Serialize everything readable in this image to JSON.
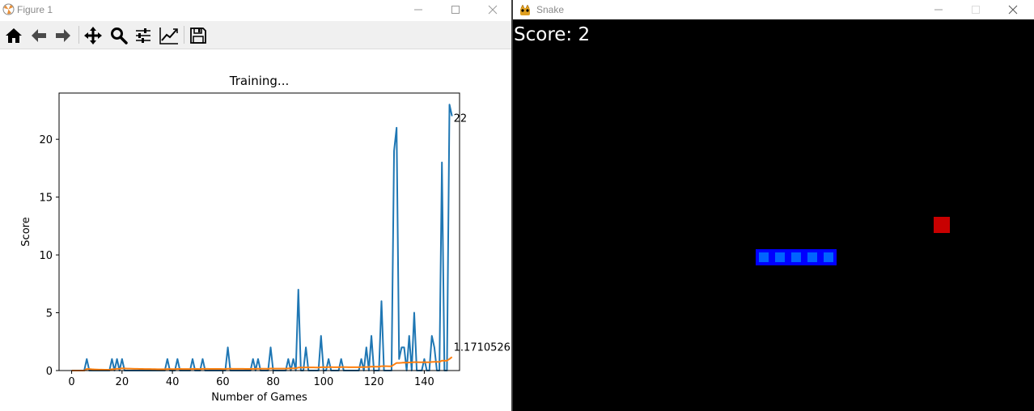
{
  "figure_window": {
    "title": "Figure 1",
    "toolbar": [
      {
        "icon": "home-icon"
      },
      {
        "icon": "back-arrow-icon"
      },
      {
        "icon": "forward-arrow-icon"
      },
      {
        "icon": "pan-icon"
      },
      {
        "icon": "zoom-icon"
      },
      {
        "icon": "subplots-config-icon"
      },
      {
        "icon": "edit-axes-icon"
      },
      {
        "icon": "save-icon"
      }
    ],
    "window_controls": [
      "minimize-icon",
      "maximize-icon",
      "close-icon"
    ]
  },
  "chart_data": {
    "type": "line",
    "title": "Training...",
    "xlabel": "Number of Games",
    "ylabel": "Score",
    "xlim": [
      -5,
      154
    ],
    "ylim": [
      0,
      24
    ],
    "xticks": [
      0,
      20,
      40,
      60,
      80,
      100,
      120,
      140
    ],
    "yticks": [
      0,
      5,
      10,
      15,
      20
    ],
    "grid": false,
    "series": [
      {
        "color": "#1f77b4",
        "values": [
          0,
          0,
          0,
          0,
          0,
          0,
          1,
          0,
          0,
          0,
          0,
          0,
          0,
          0,
          0,
          0,
          1,
          0,
          1,
          0,
          1,
          0,
          0,
          0,
          0,
          0,
          0,
          0,
          0,
          0,
          0,
          0,
          0,
          0,
          0,
          0,
          0,
          0,
          1,
          0,
          0,
          0,
          1,
          0,
          0,
          0,
          0,
          0,
          1,
          0,
          0,
          0,
          1,
          0,
          0,
          0,
          0,
          0,
          0,
          0,
          0,
          0,
          2,
          0,
          0,
          0,
          0,
          0,
          0,
          0,
          0,
          0,
          1,
          0,
          1,
          0,
          0,
          0,
          0,
          2,
          0,
          0,
          0,
          0,
          0,
          0,
          1,
          0,
          1,
          0,
          7,
          0,
          0,
          2,
          0,
          0,
          0,
          0,
          0,
          3,
          0,
          0,
          1,
          0,
          0,
          0,
          0,
          1,
          0,
          0,
          0,
          0,
          0,
          0,
          0,
          1,
          0,
          2,
          0,
          3,
          0,
          0,
          0,
          6,
          0,
          0,
          0,
          0,
          19,
          21,
          1,
          2,
          2,
          0,
          3,
          0,
          5,
          0,
          0,
          0,
          1,
          0,
          0,
          3,
          2,
          0,
          0,
          18,
          0,
          0,
          23,
          22
        ],
        "end_label": "22"
      },
      {
        "color": "#ff7f0e",
        "values": [
          0,
          0,
          0,
          0,
          0,
          0,
          0.14,
          0.13,
          0.11,
          0.1,
          0.09,
          0.08,
          0.08,
          0.07,
          0.07,
          0.06,
          0.12,
          0.11,
          0.16,
          0.15,
          0.19,
          0.18,
          0.17,
          0.17,
          0.16,
          0.15,
          0.15,
          0.14,
          0.14,
          0.13,
          0.13,
          0.13,
          0.12,
          0.12,
          0.11,
          0.11,
          0.11,
          0.11,
          0.13,
          0.13,
          0.12,
          0.12,
          0.14,
          0.14,
          0.13,
          0.13,
          0.13,
          0.13,
          0.14,
          0.14,
          0.14,
          0.13,
          0.15,
          0.15,
          0.15,
          0.14,
          0.14,
          0.14,
          0.14,
          0.14,
          0.13,
          0.13,
          0.16,
          0.16,
          0.15,
          0.15,
          0.15,
          0.15,
          0.15,
          0.14,
          0.14,
          0.14,
          0.15,
          0.15,
          0.16,
          0.16,
          0.16,
          0.16,
          0.15,
          0.18,
          0.17,
          0.17,
          0.17,
          0.17,
          0.17,
          0.17,
          0.18,
          0.18,
          0.19,
          0.19,
          0.26,
          0.26,
          0.26,
          0.27,
          0.27,
          0.27,
          0.27,
          0.26,
          0.26,
          0.29,
          0.29,
          0.29,
          0.3,
          0.3,
          0.29,
          0.29,
          0.29,
          0.3,
          0.3,
          0.3,
          0.29,
          0.29,
          0.29,
          0.29,
          0.29,
          0.3,
          0.3,
          0.31,
          0.31,
          0.34,
          0.33,
          0.33,
          0.33,
          0.38,
          0.38,
          0.38,
          0.37,
          0.37,
          0.52,
          0.66,
          0.66,
          0.67,
          0.69,
          0.68,
          0.7,
          0.7,
          0.73,
          0.73,
          0.72,
          0.72,
          0.73,
          0.72,
          0.72,
          0.74,
          0.75,
          0.75,
          0.74,
          0.86,
          0.85,
          0.85,
          1.0,
          1.1710526315
        ],
        "end_label": "1.1710526315"
      }
    ]
  },
  "snake_window": {
    "title": "Snake",
    "score_text": "Score: 2",
    "window_controls": [
      "minimize-icon",
      "maximize-icon",
      "close-icon"
    ],
    "snake_color": "#0000ff",
    "snake_inner_color": "#0064ff",
    "food_color": "#c80000",
    "background": "#000000",
    "grid_cell": 20,
    "snake_cells": [
      [
        15,
        14
      ],
      [
        16,
        14
      ],
      [
        17,
        14
      ],
      [
        18,
        14
      ],
      [
        19,
        14
      ]
    ],
    "food_cell": [
      26,
      12
    ]
  }
}
